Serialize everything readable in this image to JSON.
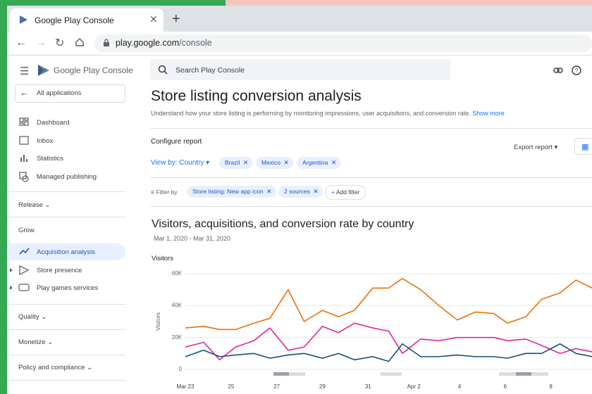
{
  "browser": {
    "tab_title": "Google Play Console",
    "url_host": "play.google.com",
    "url_path": "/console"
  },
  "sidebar": {
    "brand_google": "Google Play",
    "brand_console": "Console",
    "all_apps": "All applications",
    "items": [
      "Dashboard",
      "Inbox",
      "Statistics",
      "Managed publishing"
    ],
    "release": "Release",
    "grow": "Grow",
    "grow_items": [
      "Acquisition analysis",
      "Store presence",
      "Play games services"
    ],
    "sections": [
      "Quality",
      "Monetize",
      "Policy and compliance"
    ]
  },
  "search": "Search Play Console",
  "report": {
    "title": "Store listing conversion analysis",
    "description": "Understand how your store listing is performing by monitoring impressions, user acquisitions, and conversion rate.",
    "show_more": "Show more",
    "configure": "Configure report",
    "export": "Export report",
    "view_by": "View by: Country",
    "countries": [
      "Brazil",
      "Mexico",
      "Argentina"
    ],
    "filter_by": "Filter by",
    "filters": [
      "Store listing: New app icon",
      "2 sources"
    ],
    "add_filter": "Add filter"
  },
  "chart_data": {
    "type": "line",
    "title": "Visitors, acquisitions, and conversion rate by country",
    "subtitle": "Mar 1, 2020 - Mar 31, 2020",
    "panel_title": "Visitors",
    "y_label": "Visitors",
    "x": [
      0,
      0.8,
      1.5,
      2.2,
      3,
      3.7,
      4.5,
      5.2,
      6,
      6.7,
      7.4,
      8.2,
      8.9,
      9.5,
      10.3,
      11.1,
      11.9,
      12.7,
      13.5,
      14.1,
      14.9,
      15.6,
      16.4,
      17.1,
      17.8
    ],
    "xlim": [
      0,
      17.8
    ],
    "xticks": [
      {
        "value": 0,
        "label": "Mar 23"
      },
      {
        "value": 2,
        "label": "25"
      },
      {
        "value": 4,
        "label": "27"
      },
      {
        "value": 6,
        "label": "29"
      },
      {
        "value": 8,
        "label": "31"
      },
      {
        "value": 10,
        "label": "Apr 2"
      },
      {
        "value": 12,
        "label": "4"
      },
      {
        "value": 14,
        "label": "6"
      },
      {
        "value": 16,
        "label": "8"
      }
    ],
    "ylim": [
      0,
      60000
    ],
    "yticks": [
      0,
      {
        "value": 20000,
        "label": "20K"
      },
      {
        "value": 40000,
        "label": "40K"
      },
      {
        "value": 60000,
        "label": "60K"
      }
    ],
    "grid": true,
    "series": [
      {
        "color": "#e8710a",
        "values": [
          26000,
          27000,
          25000,
          25000,
          29000,
          32000,
          50000,
          30000,
          37000,
          33000,
          37000,
          51000,
          51000,
          57000,
          50000,
          40000,
          31000,
          36000,
          35000,
          29000,
          33000,
          44000,
          48000,
          56000,
          51000
        ]
      },
      {
        "color": "#e52592",
        "values": [
          14000,
          17000,
          6000,
          14000,
          18000,
          26000,
          12000,
          14000,
          27000,
          23000,
          29000,
          26000,
          24000,
          10000,
          19000,
          18000,
          20000,
          20000,
          20000,
          18000,
          19000,
          15000,
          10000,
          13000,
          11000
        ]
      },
      {
        "color": "#12507a",
        "values": [
          8000,
          12000,
          8000,
          9000,
          10000,
          7000,
          9000,
          10000,
          7000,
          10000,
          6000,
          8000,
          5000,
          16000,
          8000,
          8000,
          9000,
          8000,
          8000,
          7000,
          10000,
          10000,
          16000,
          10000,
          8000
        ]
      }
    ]
  }
}
